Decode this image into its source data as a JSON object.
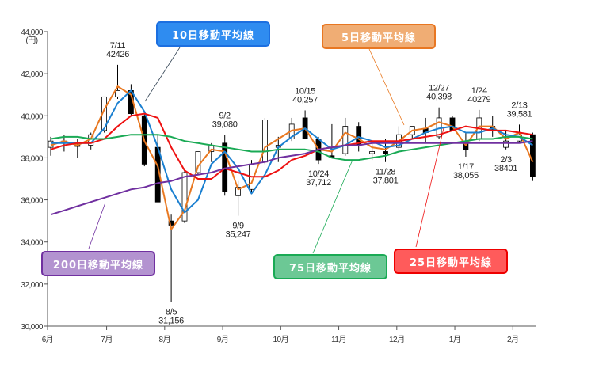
{
  "chart_data": {
    "type": "candlestick-line",
    "unit_label": "(円)",
    "ylim": [
      30000,
      44000
    ],
    "yticks": [
      {
        "v": 30000,
        "label": "30,000"
      },
      {
        "v": 32000,
        "label": "32,000"
      },
      {
        "v": 34000,
        "label": "34,000"
      },
      {
        "v": 36000,
        "label": "36,000"
      },
      {
        "v": 38000,
        "label": "38,000"
      },
      {
        "v": 40000,
        "label": "40,000"
      },
      {
        "v": 42000,
        "label": "42,000"
      },
      {
        "v": 44000,
        "label": "44,000"
      }
    ],
    "xticks": [
      {
        "week": 0,
        "label": "6月"
      },
      {
        "week": 4.3,
        "label": "7月"
      },
      {
        "week": 8.7,
        "label": "8月"
      },
      {
        "week": 13.1,
        "label": "9月"
      },
      {
        "week": 17.5,
        "label": "10月"
      },
      {
        "week": 21.9,
        "label": "11月"
      },
      {
        "week": 26.3,
        "label": "12月"
      },
      {
        "week": 30.7,
        "label": "1月"
      },
      {
        "week": 35.1,
        "label": "2月"
      }
    ],
    "candles": [
      [
        38500,
        39000,
        38100,
        38800
      ],
      [
        38800,
        39100,
        38300,
        38800
      ],
      [
        38600,
        38900,
        38000,
        38600
      ],
      [
        38600,
        39200,
        38400,
        39100
      ],
      [
        39300,
        40900,
        39200,
        40900
      ],
      [
        40900,
        42426,
        40800,
        41200
      ],
      [
        41200,
        41500,
        40000,
        40100
      ],
      [
        40000,
        40200,
        37600,
        37700
      ],
      [
        38500,
        39100,
        35900,
        35900
      ],
      [
        35000,
        35300,
        31156,
        34800
      ],
      [
        35000,
        37500,
        34900,
        37300
      ],
      [
        37300,
        38300,
        37200,
        38300
      ],
      [
        38300,
        38700,
        37800,
        38600
      ],
      [
        38700,
        39080,
        36200,
        36400
      ],
      [
        36200,
        36900,
        35247,
        36600
      ],
      [
        36500,
        37900,
        36300,
        37700
      ],
      [
        37800,
        39900,
        37700,
        39800
      ],
      [
        38500,
        39000,
        37800,
        38600
      ],
      [
        38900,
        39900,
        38800,
        39600
      ],
      [
        39900,
        40257,
        38900,
        38900
      ],
      [
        38900,
        39000,
        37712,
        37900
      ],
      [
        38100,
        39600,
        38000,
        38000
      ],
      [
        38200,
        39900,
        38100,
        39500
      ],
      [
        39500,
        39700,
        38300,
        38600
      ],
      [
        38200,
        38700,
        37900,
        38300
      ],
      [
        38300,
        38900,
        37801,
        38200
      ],
      [
        38500,
        39500,
        38400,
        39100
      ],
      [
        39100,
        39500,
        38900,
        39500
      ],
      [
        39400,
        39900,
        38700,
        39200
      ],
      [
        39000,
        40398,
        38900,
        39900
      ],
      [
        39900,
        40000,
        39300,
        39300
      ],
      [
        38800,
        39200,
        38055,
        38400
      ],
      [
        38900,
        40279,
        38800,
        39900
      ],
      [
        39500,
        40000,
        39000,
        39300
      ],
      [
        38500,
        39300,
        38401,
        38800
      ],
      [
        38800,
        39581,
        38700,
        39100
      ],
      [
        39100,
        39200,
        36900,
        37100
      ]
    ],
    "series": [
      {
        "name": "5日移動平均線",
        "color": "#e8771f",
        "values": [
          38600,
          38800,
          38600,
          38900,
          40300,
          41400,
          41000,
          38800,
          37600,
          34600,
          35500,
          37600,
          38400,
          38300,
          36500,
          36800,
          38500,
          38900,
          39300,
          39400,
          38400,
          38300,
          39200,
          38900,
          38500,
          38400,
          38800,
          39300,
          39400,
          39700,
          39500,
          38600,
          39500,
          39500,
          38900,
          39200,
          37800
        ]
      },
      {
        "name": "10日移動平均線",
        "color": "#1a7fd0",
        "values": [
          38700,
          38700,
          38700,
          38700,
          39400,
          40600,
          41200,
          40200,
          38500,
          36500,
          35400,
          36000,
          37700,
          38300,
          37500,
          36300,
          37200,
          38500,
          39000,
          39400,
          38900,
          38400,
          38600,
          39000,
          38800,
          38500,
          38600,
          38900,
          39200,
          39400,
          39500,
          39200,
          39200,
          39400,
          39100,
          39000,
          38600
        ]
      },
      {
        "name": "25日移動平均線",
        "color": "#ee1111",
        "values": [
          38400,
          38600,
          38700,
          38700,
          38900,
          39500,
          40000,
          40100,
          39900,
          38500,
          37400,
          37000,
          37000,
          37500,
          37300,
          37100,
          37100,
          37400,
          37900,
          38100,
          38400,
          38500,
          38600,
          38700,
          38800,
          38800,
          38800,
          38900,
          39000,
          39100,
          39300,
          39500,
          39400,
          39300,
          39300,
          39200,
          39100
        ]
      },
      {
        "name": "75日移動平均線",
        "color": "#1aaa55",
        "values": [
          38900,
          39000,
          39000,
          38900,
          38900,
          39000,
          39100,
          39100,
          39100,
          39000,
          38800,
          38700,
          38600,
          38500,
          38400,
          38300,
          38300,
          38400,
          38400,
          38400,
          38300,
          38000,
          37900,
          37900,
          38000,
          38100,
          38300,
          38400,
          38500,
          38600,
          38700,
          38800,
          38900,
          38900,
          39000,
          39000,
          38900
        ]
      },
      {
        "name": "200日移動平均線",
        "color": "#7030a0",
        "values": [
          35300,
          35500,
          35700,
          35900,
          36100,
          36300,
          36500,
          36600,
          36800,
          36900,
          37100,
          37200,
          37300,
          37500,
          37600,
          37700,
          37800,
          38000,
          38100,
          38200,
          38400,
          38500,
          38600,
          38600,
          38700,
          38700,
          38700,
          38700,
          38700,
          38700,
          38700,
          38700,
          38700,
          38700,
          38700,
          38700,
          38800
        ]
      }
    ],
    "annotations": [
      {
        "date": "7/11",
        "value": "42426",
        "week": 5,
        "price": 42426,
        "pos": "above"
      },
      {
        "date": "8/5",
        "value": "31,156",
        "week": 9,
        "price": 31156,
        "pos": "below"
      },
      {
        "date": "9/2",
        "value": "39,080",
        "week": 13,
        "price": 39080,
        "pos": "above"
      },
      {
        "date": "9/9",
        "value": "35,247",
        "week": 14,
        "price": 35247,
        "pos": "below"
      },
      {
        "date": "10/15",
        "value": "40,257",
        "week": 19,
        "price": 40257,
        "pos": "above"
      },
      {
        "date": "10/24",
        "value": "37,712",
        "week": 20,
        "price": 37712,
        "pos": "below"
      },
      {
        "date": "11/28",
        "value": "37,801",
        "week": 25,
        "price": 37801,
        "pos": "below"
      },
      {
        "date": "12/27",
        "value": "40,398",
        "week": 29,
        "price": 40398,
        "pos": "above"
      },
      {
        "date": "1/17",
        "value": "38,055",
        "week": 31,
        "price": 38055,
        "pos": "below"
      },
      {
        "date": "1/24",
        "value": "40279",
        "week": 32,
        "price": 40279,
        "pos": "above"
      },
      {
        "date": "2/3",
        "value": "38401",
        "week": 34,
        "price": 38401,
        "pos": "below"
      },
      {
        "date": "2/13",
        "value": "39,581",
        "week": 35,
        "price": 39581,
        "pos": "above"
      }
    ]
  },
  "legend": {
    "ma5": "5日移動平均線",
    "ma10": "10日移動平均線",
    "ma25": "25日移動平均線",
    "ma75": "75日移動平均線",
    "ma200": "200日移動平均線"
  }
}
